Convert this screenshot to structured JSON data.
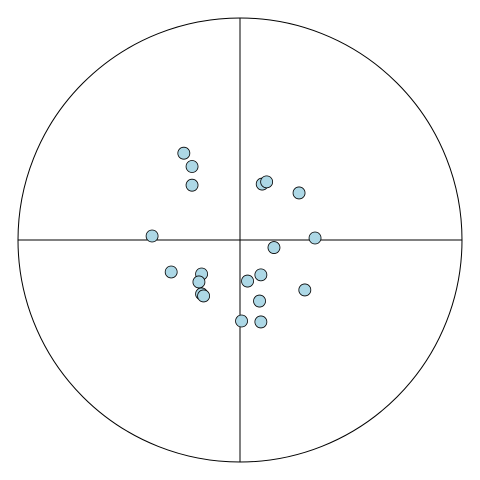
{
  "chart_data": {
    "type": "scatter",
    "title": "",
    "xlabel": "",
    "ylabel": "",
    "xlim": [
      -1,
      1
    ],
    "ylim": [
      -1,
      1
    ],
    "grid": false,
    "legend": "none",
    "frame": "circle",
    "axes_lines": "crosshair",
    "marker_fill": "#add8e6",
    "marker_edge": "#000000",
    "series": [
      {
        "points": [
          {
            "x": -0.253,
            "y": 0.391
          },
          {
            "x": -0.216,
            "y": 0.331
          },
          {
            "x": -0.216,
            "y": 0.247
          },
          {
            "x": 0.1,
            "y": 0.252
          },
          {
            "x": 0.12,
            "y": 0.262
          },
          {
            "x": 0.266,
            "y": 0.212
          },
          {
            "x": -0.396,
            "y": 0.018
          },
          {
            "x": 0.338,
            "y": 0.009
          },
          {
            "x": 0.153,
            "y": -0.034
          },
          {
            "x": -0.31,
            "y": -0.144
          },
          {
            "x": -0.173,
            "y": -0.153
          },
          {
            "x": -0.185,
            "y": -0.189
          },
          {
            "x": 0.094,
            "y": -0.157
          },
          {
            "x": 0.034,
            "y": -0.185
          },
          {
            "x": -0.173,
            "y": -0.243
          },
          {
            "x": -0.164,
            "y": -0.252
          },
          {
            "x": 0.292,
            "y": -0.225
          },
          {
            "x": 0.088,
            "y": -0.275
          },
          {
            "x": 0.007,
            "y": -0.365
          },
          {
            "x": 0.094,
            "y": -0.369
          }
        ]
      }
    ]
  }
}
